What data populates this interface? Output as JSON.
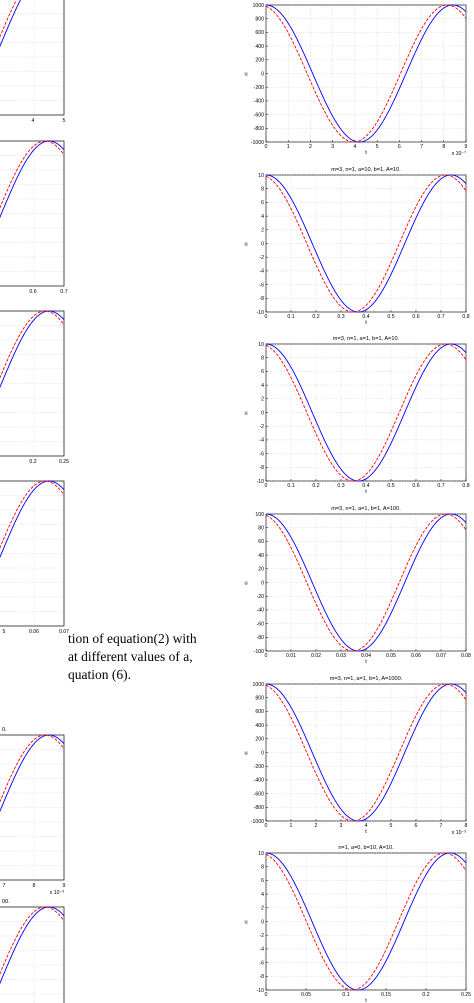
{
  "caption_fragment": {
    "lines": [
      "tion of equation(2) with",
      "at different values of a,",
      "quation (6)."
    ]
  },
  "chart_data": [
    {
      "type": "line",
      "title": "",
      "xlabel": "t",
      "ylabel": "u",
      "xlim": [
        0,
        9
      ],
      "ylim": [
        -1000,
        1000
      ],
      "x_multiplier": "x 10⁻⁷",
      "xticks": [
        0,
        1,
        2,
        3,
        4,
        5,
        6,
        7,
        8,
        9
      ],
      "yticks": [
        -1000,
        -800,
        -600,
        -400,
        -200,
        0,
        200,
        400,
        600,
        800,
        1000
      ],
      "amplitude": 1000,
      "period": 8.4,
      "grid": true,
      "series": [
        {
          "style": "solid",
          "color": "#0000ff",
          "phase_shift": 0
        },
        {
          "style": "dashed",
          "color": "#ff0000",
          "phase_shift": -0.25
        }
      ]
    },
    {
      "type": "line",
      "title": "m=3, n=1, a=10, b=1, A=10.",
      "xlabel": "t",
      "ylabel": "u",
      "xlim": [
        0,
        0.8
      ],
      "ylim": [
        -10,
        10
      ],
      "x_multiplier": "",
      "xticks": [
        0,
        0.1,
        0.2,
        0.3,
        0.4,
        0.5,
        0.6,
        0.7,
        0.8
      ],
      "yticks": [
        -10,
        -8,
        -6,
        -4,
        -2,
        0,
        2,
        4,
        6,
        8,
        10
      ],
      "amplitude": 10,
      "period": 0.74,
      "grid": true,
      "series": [
        {
          "style": "solid",
          "color": "#0000ff",
          "phase_shift": 0
        },
        {
          "style": "dashed",
          "color": "#ff0000",
          "phase_shift": -0.022
        }
      ]
    },
    {
      "type": "line",
      "title": "m=3, n=1, a=1, b=1, A=10.",
      "xlabel": "t",
      "ylabel": "u",
      "xlim": [
        0,
        0.8
      ],
      "ylim": [
        -10,
        10
      ],
      "x_multiplier": "",
      "xticks": [
        0,
        0.1,
        0.2,
        0.3,
        0.4,
        0.5,
        0.6,
        0.7,
        0.8
      ],
      "yticks": [
        -10,
        -8,
        -6,
        -4,
        -2,
        0,
        2,
        4,
        6,
        8,
        10
      ],
      "amplitude": 10,
      "period": 0.74,
      "grid": true,
      "series": [
        {
          "style": "solid",
          "color": "#0000ff",
          "phase_shift": 0
        },
        {
          "style": "dashed",
          "color": "#ff0000",
          "phase_shift": -0.022
        }
      ]
    },
    {
      "type": "line",
      "title": "m=3, n=1, a=1, b=1, A=100.",
      "xlabel": "t",
      "ylabel": "u",
      "xlim": [
        0,
        0.08
      ],
      "ylim": [
        -100,
        100
      ],
      "x_multiplier": "",
      "xticks": [
        0,
        0.01,
        0.02,
        0.03,
        0.04,
        0.05,
        0.06,
        0.07,
        0.08
      ],
      "yticks": [
        -100,
        -80,
        -60,
        -40,
        -20,
        0,
        20,
        40,
        60,
        80,
        100
      ],
      "amplitude": 100,
      "period": 0.074,
      "grid": true,
      "series": [
        {
          "style": "solid",
          "color": "#0000ff",
          "phase_shift": 0
        },
        {
          "style": "dashed",
          "color": "#ff0000",
          "phase_shift": -0.0022
        }
      ]
    },
    {
      "type": "line",
      "title": "m=3, n=1, a=1, b=1, A=1000.",
      "xlabel": "t",
      "ylabel": "u",
      "xlim": [
        0,
        8
      ],
      "ylim": [
        -1000,
        1000
      ],
      "x_multiplier": "x 10⁻³",
      "xticks": [
        0,
        1,
        2,
        3,
        4,
        5,
        6,
        7,
        8
      ],
      "yticks": [
        -1000,
        -800,
        -600,
        -400,
        -200,
        0,
        200,
        400,
        600,
        800,
        1000
      ],
      "amplitude": 1000,
      "period": 7.4,
      "grid": true,
      "series": [
        {
          "style": "solid",
          "color": "#0000ff",
          "phase_shift": 0
        },
        {
          "style": "dashed",
          "color": "#ff0000",
          "phase_shift": -0.22
        }
      ]
    },
    {
      "type": "line",
      "title": "n=1, a=0, b=10, A=10.",
      "xlabel": "t",
      "ylabel": "u",
      "xlim": [
        0,
        0.25
      ],
      "ylim": [
        -10,
        10
      ],
      "x_multiplier": "",
      "xticks": [
        0,
        0.05,
        0.1,
        0.15,
        0.2,
        0.25
      ],
      "yticks": [
        -10,
        -8,
        -6,
        -4,
        -2,
        0,
        2,
        4,
        6,
        8,
        10
      ],
      "amplitude": 10,
      "period": 0.23,
      "grid": true,
      "series": [
        {
          "style": "solid",
          "color": "#0000ff",
          "phase_shift": 0
        },
        {
          "style": "dashed",
          "color": "#ff0000",
          "phase_shift": -0.007
        }
      ]
    }
  ],
  "left_column_partial": {
    "panels": [
      {
        "tick_labels": [
          "4",
          "5"
        ]
      },
      {
        "tick_labels": [
          "0.6",
          "0.7"
        ]
      },
      {
        "tick_labels": [
          "0.2",
          "0.25"
        ]
      },
      {
        "tick_labels": [
          "5",
          "0.06",
          "0.07"
        ]
      },
      {
        "title_fragment": "0.",
        "tick_labels": [
          "7",
          "8",
          "9"
        ],
        "x_multiplier": "x 10⁻³"
      },
      {
        "title_fragment": "00."
      }
    ]
  }
}
